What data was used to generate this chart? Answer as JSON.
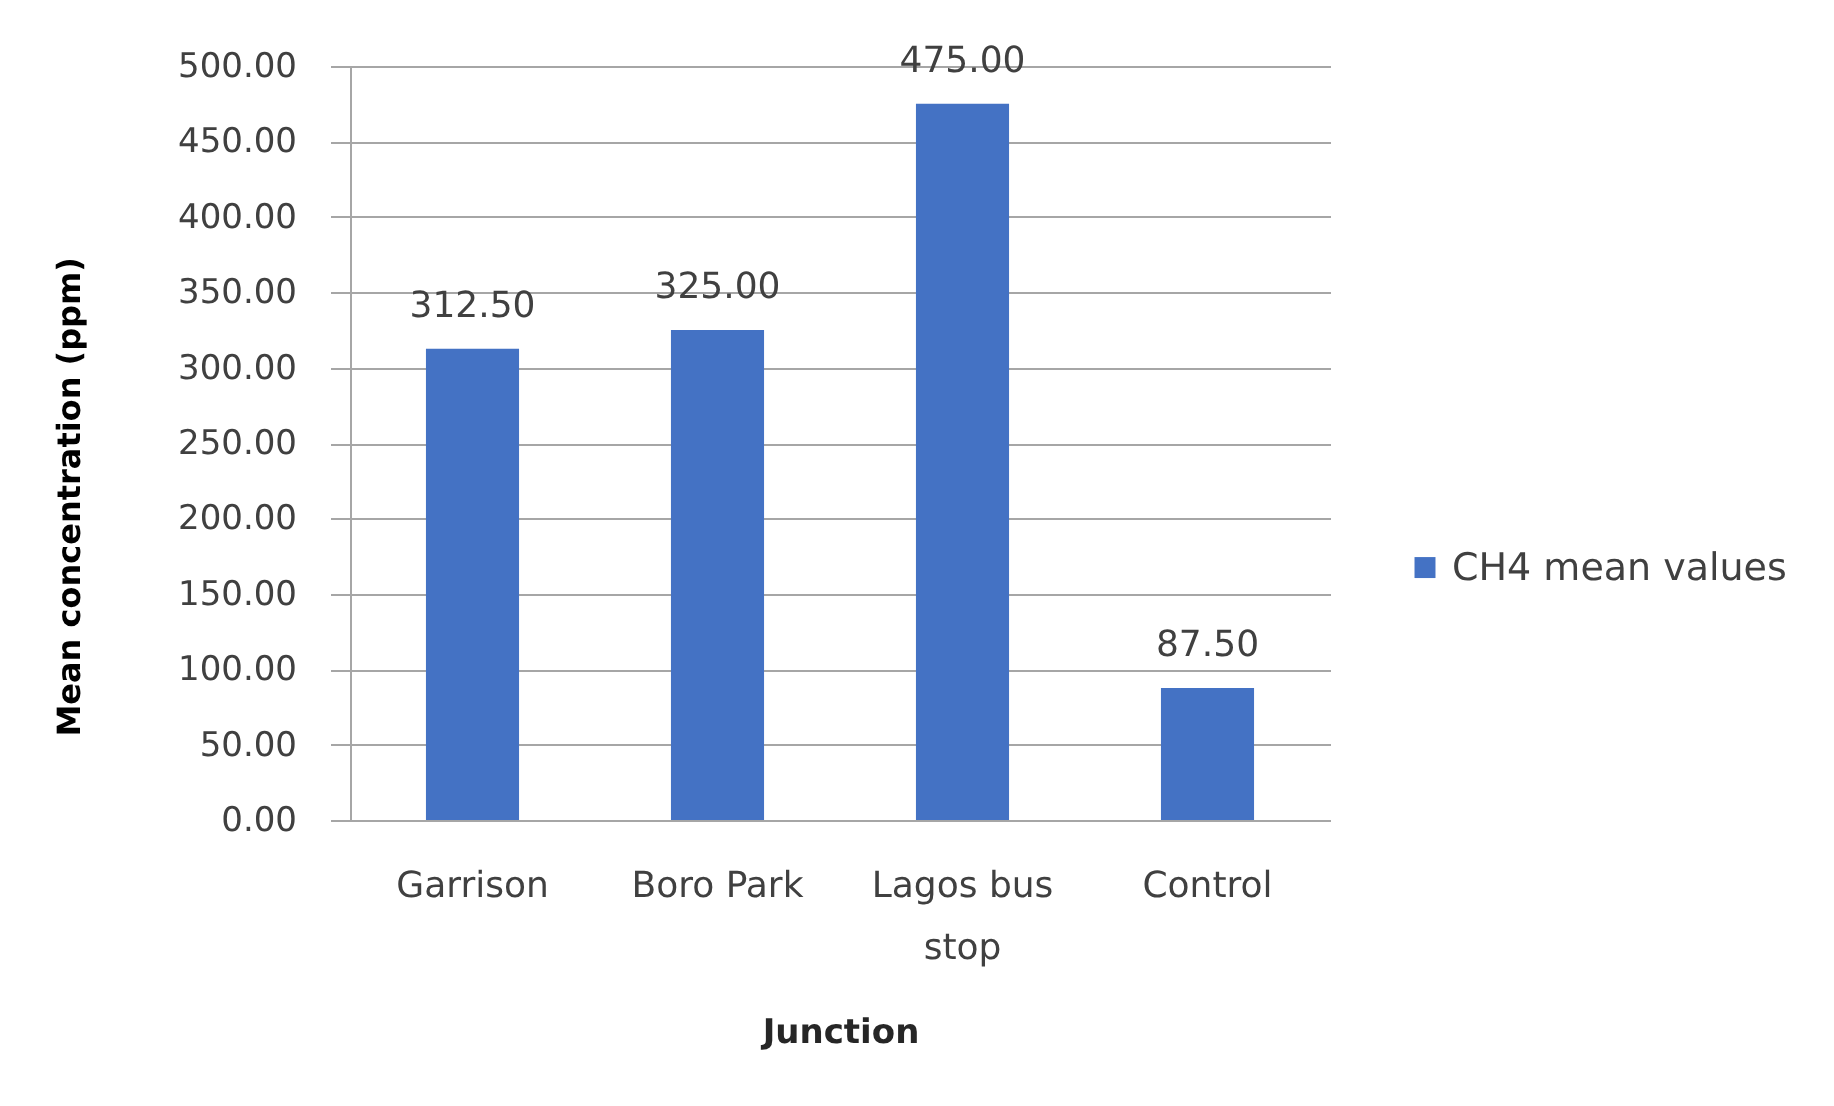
{
  "chart_data": {
    "type": "bar",
    "xlabel": "Junction",
    "ylabel": "Mean concentration (ppm)",
    "categories": [
      "Garrison",
      "Boro Park",
      "Lagos bus stop",
      "Control"
    ],
    "series": [
      {
        "name": "CH4 mean values",
        "color": "#4472c4",
        "values": [
          312.5,
          325,
          475,
          87.5
        ],
        "value_labels": [
          "312.50",
          "325.00",
          "475.00",
          "87.50"
        ]
      }
    ],
    "ylim": [
      0,
      500
    ],
    "yticks": [
      {
        "value": 0,
        "label": "0.00"
      },
      {
        "value": 50,
        "label": "50.00"
      },
      {
        "value": 100,
        "label": "100.00"
      },
      {
        "value": 150,
        "label": "150.00"
      },
      {
        "value": 200,
        "label": "200.00"
      },
      {
        "value": 250,
        "label": "250.00"
      },
      {
        "value": 300,
        "label": "300.00"
      },
      {
        "value": 350,
        "label": "350.00"
      },
      {
        "value": 400,
        "label": "400.00"
      },
      {
        "value": 450,
        "label": "450.00"
      },
      {
        "value": 500,
        "label": "500.00"
      }
    ],
    "grid": "y",
    "legend": "right"
  }
}
